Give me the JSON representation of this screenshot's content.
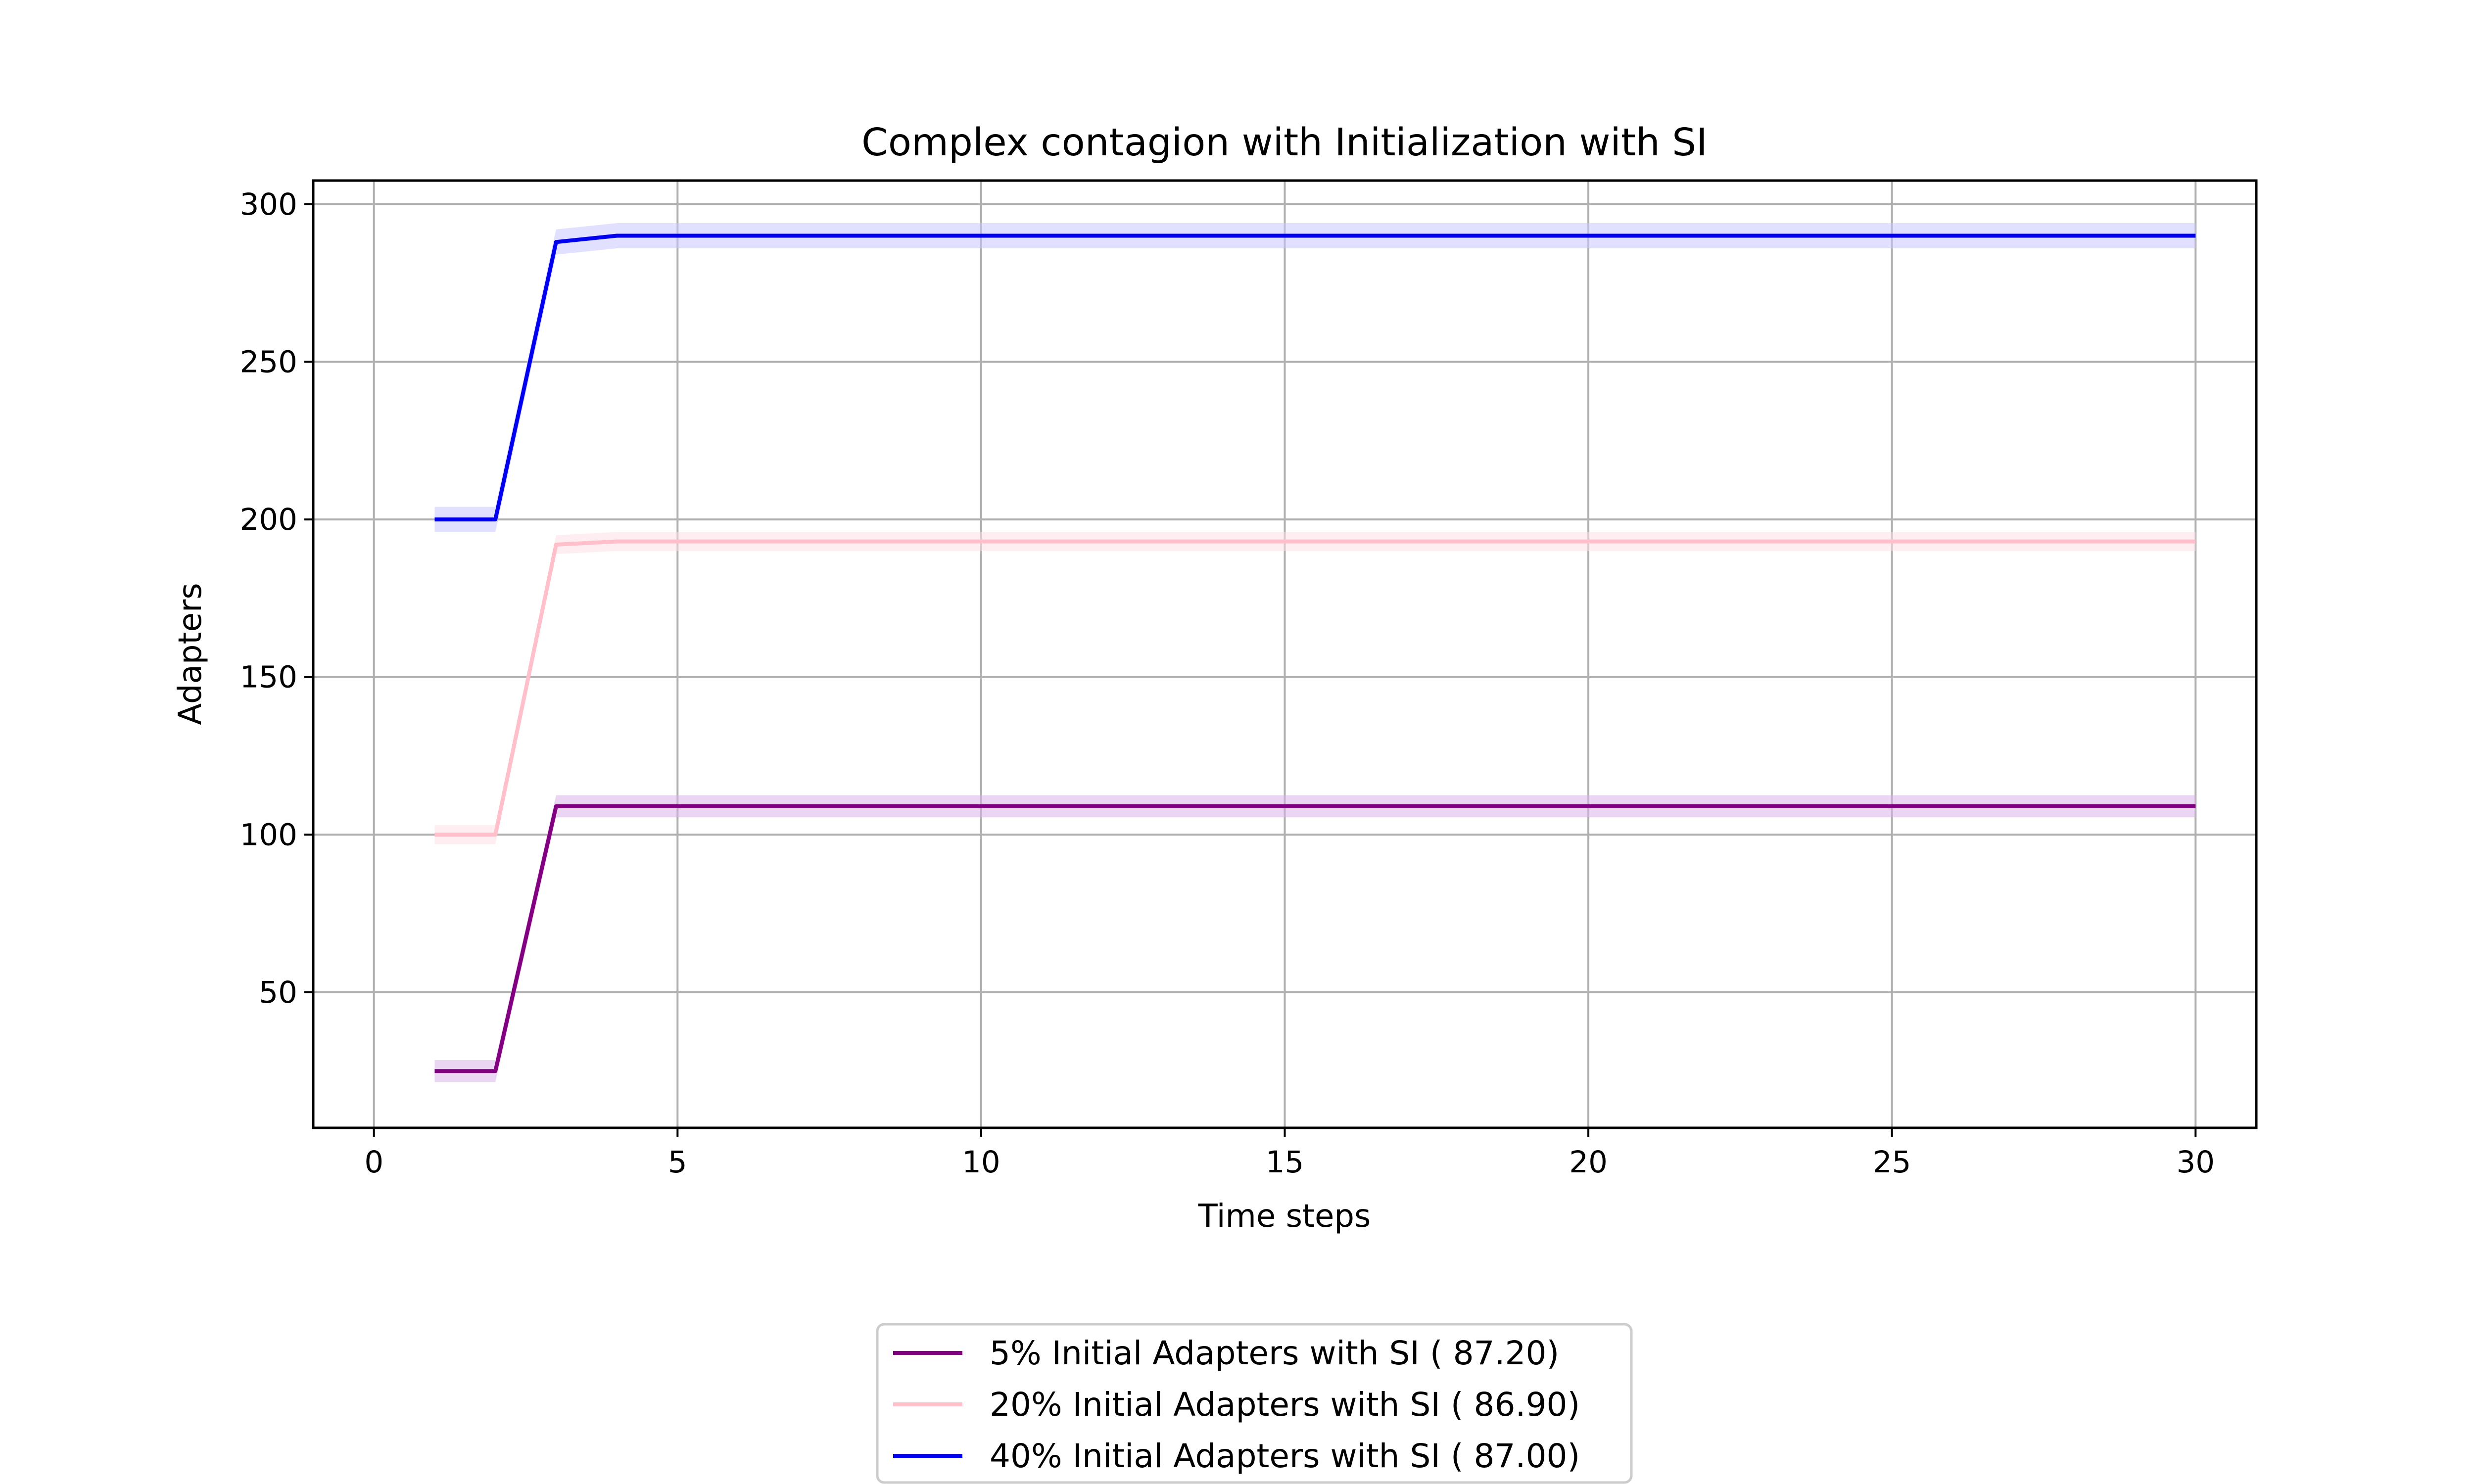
{
  "chart_data": {
    "type": "line",
    "title": "Complex contagion with Initialization with SI",
    "xlabel": "Time steps",
    "ylabel": "Adapters",
    "xlim": [
      -1,
      31
    ],
    "ylim": [
      7,
      307.5
    ],
    "xticks": [
      0,
      5,
      10,
      15,
      20,
      25,
      30
    ],
    "yticks": [
      50,
      100,
      150,
      200,
      250,
      300
    ],
    "grid": true,
    "legend_position": "below",
    "x": [
      1,
      2,
      3,
      4,
      5,
      6,
      7,
      8,
      9,
      10,
      11,
      12,
      13,
      14,
      15,
      16,
      17,
      18,
      19,
      20,
      21,
      22,
      23,
      24,
      25,
      26,
      27,
      28,
      29,
      30
    ],
    "series": [
      {
        "name": "5% Initial Adapters with SI ( 87.20)",
        "color": "#800080",
        "band_color": "#d8b4e8",
        "values": [
          25,
          25,
          109,
          109,
          109,
          109,
          109,
          109,
          109,
          109,
          109,
          109,
          109,
          109,
          109,
          109,
          109,
          109,
          109,
          109,
          109,
          109,
          109,
          109,
          109,
          109,
          109,
          109,
          109,
          109
        ],
        "band": 3.5
      },
      {
        "name": "20% Initial Adapters with SI ( 86.90)",
        "color": "#ffc0cb",
        "band_color": "#ffe0e6",
        "values": [
          100,
          100,
          192,
          193,
          193,
          193,
          193,
          193,
          193,
          193,
          193,
          193,
          193,
          193,
          193,
          193,
          193,
          193,
          193,
          193,
          193,
          193,
          193,
          193,
          193,
          193,
          193,
          193,
          193,
          193
        ],
        "band": 3
      },
      {
        "name": "40% Initial Adapters with SI ( 87.00)",
        "color": "#0000ee",
        "band_color": "#c8c8ff",
        "values": [
          200,
          200,
          288,
          290,
          290,
          290,
          290,
          290,
          290,
          290,
          290,
          290,
          290,
          290,
          290,
          290,
          290,
          290,
          290,
          290,
          290,
          290,
          290,
          290,
          290,
          290,
          290,
          290,
          290,
          290
        ],
        "band": 4
      }
    ]
  }
}
